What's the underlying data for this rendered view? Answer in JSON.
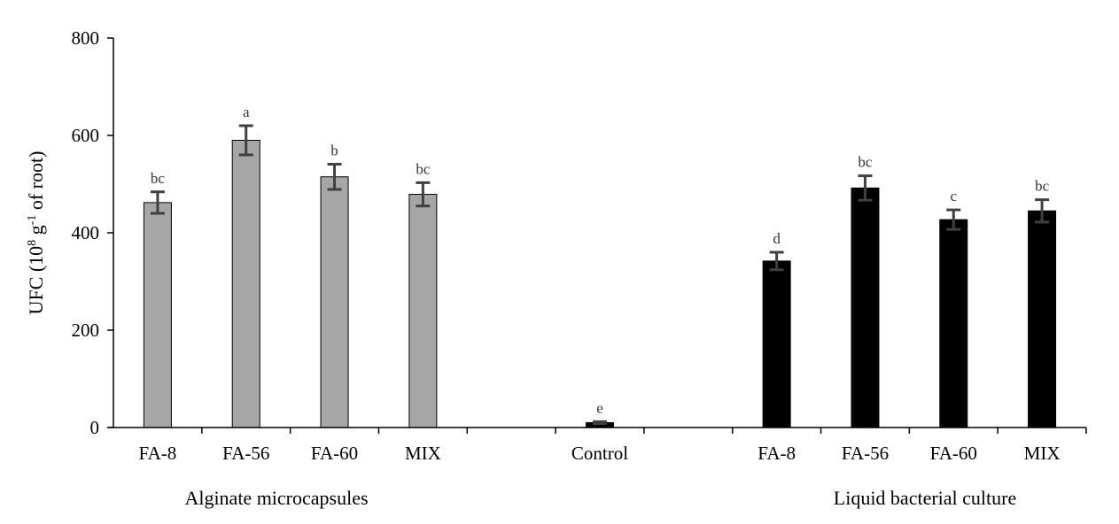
{
  "chart_data": {
    "type": "bar",
    "title": "",
    "ylabel": {
      "prefix": "UFC  (10",
      "exp1": "8",
      "mid": " g",
      "exp2": "-1",
      "suffix": " of root)"
    },
    "xlabel": "",
    "ylim": [
      0,
      800
    ],
    "yticks": [
      "0",
      "200",
      "400",
      "600",
      "800"
    ],
    "grid": false,
    "bars": [
      {
        "label": "FA-8",
        "value": 462,
        "error": 22,
        "sig": "bc",
        "group": "alginate"
      },
      {
        "label": "FA-56",
        "value": 590,
        "error": 30,
        "sig": "a",
        "group": "alginate"
      },
      {
        "label": "FA-60",
        "value": 515,
        "error": 26,
        "sig": "b",
        "group": "alginate"
      },
      {
        "label": "MIX",
        "value": 479,
        "error": 24,
        "sig": "bc",
        "group": "alginate"
      },
      {
        "label": "Control",
        "value": 10,
        "error": 2,
        "sig": "e",
        "group": "control"
      },
      {
        "label": "FA-8",
        "value": 342,
        "error": 18,
        "sig": "d",
        "group": "liquid"
      },
      {
        "label": "FA-56",
        "value": 492,
        "error": 25,
        "sig": "bc",
        "group": "liquid"
      },
      {
        "label": "FA-60",
        "value": 427,
        "error": 20,
        "sig": "c",
        "group": "liquid"
      },
      {
        "label": "MIX",
        "value": 445,
        "error": 23,
        "sig": "bc",
        "group": "liquid"
      }
    ],
    "groups": [
      {
        "name": "Alginate microcapsules",
        "color": "#a6a6a6"
      },
      {
        "name": "Liquid bacterial culture",
        "color": "#000000"
      }
    ],
    "control_color": "#000000",
    "error_bar_color": "#404040"
  }
}
